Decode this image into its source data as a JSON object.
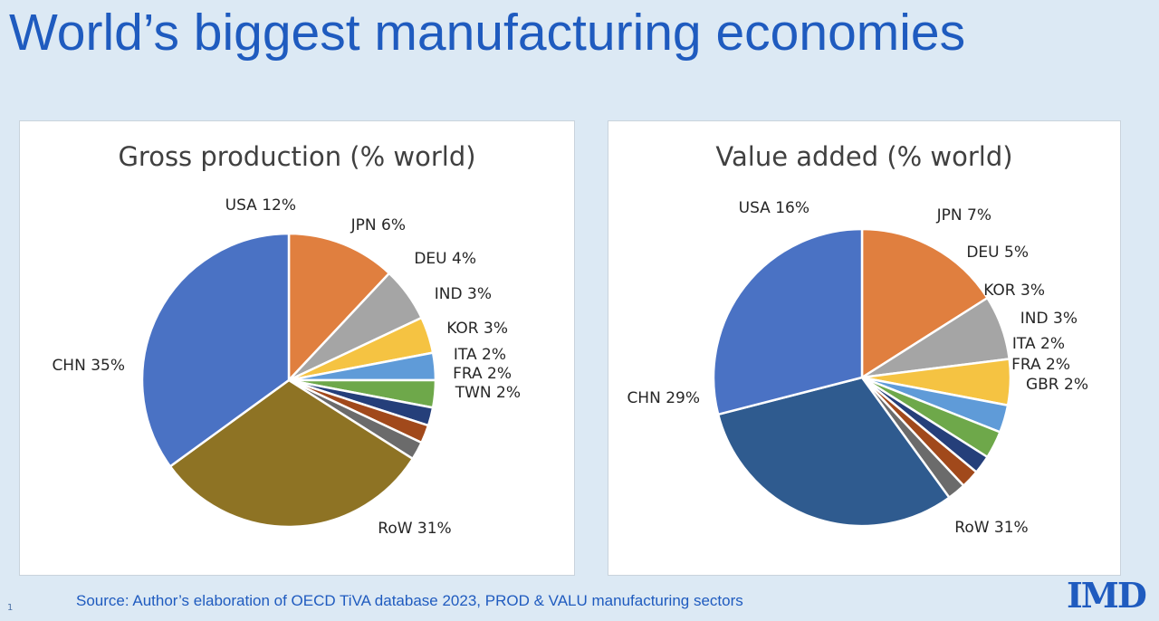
{
  "title": "World’s biggest manufacturing economies",
  "footer": {
    "slide_number": "1",
    "source": "Source: Author’s elaboration of OECD    TiVA database 2023, PROD & VALU manufacturing sectors",
    "logo": "IMD"
  },
  "colors": {
    "title": "#1f5bbf",
    "background": "#dce9f4"
  },
  "chart_data": [
    {
      "type": "pie",
      "title": "Gross production  (% world)",
      "start_angle_deg": 0,
      "direction": "clockwise",
      "slices": [
        {
          "label": "USA 12%",
          "name": "USA",
          "value": 12,
          "color": "#e07f3f"
        },
        {
          "label": "JPN 6%",
          "name": "JPN",
          "value": 6,
          "color": "#a5a5a5"
        },
        {
          "label": "DEU 4%",
          "name": "DEU",
          "value": 4,
          "color": "#f5c342"
        },
        {
          "label": "IND 3%",
          "name": "IND",
          "value": 3,
          "color": "#5f9bd8"
        },
        {
          "label": "KOR 3%",
          "name": "KOR",
          "value": 3,
          "color": "#6ea84a"
        },
        {
          "label": "ITA 2%",
          "name": "ITA",
          "value": 2,
          "color": "#253f7a"
        },
        {
          "label": "FRA 2%",
          "name": "FRA",
          "value": 2,
          "color": "#a1491b"
        },
        {
          "label": "TWN 2%",
          "name": "TWN",
          "value": 2,
          "color": "#6b6b6b"
        },
        {
          "label": "RoW 31%",
          "name": "RoW",
          "value": 31,
          "color": "#8e7324"
        },
        {
          "label": "CHN 35%",
          "name": "CHN",
          "value": 35,
          "color": "#4a72c4"
        }
      ]
    },
    {
      "type": "pie",
      "title": "Value added (% world)",
      "start_angle_deg": 0,
      "direction": "clockwise",
      "slices": [
        {
          "label": "USA 16%",
          "name": "USA",
          "value": 16,
          "color": "#e07f3f"
        },
        {
          "label": "JPN 7%",
          "name": "JPN",
          "value": 7,
          "color": "#a5a5a5"
        },
        {
          "label": "DEU 5%",
          "name": "DEU",
          "value": 5,
          "color": "#f5c342"
        },
        {
          "label": "KOR 3%",
          "name": "KOR",
          "value": 3,
          "color": "#5f9bd8"
        },
        {
          "label": "IND 3%",
          "name": "IND",
          "value": 3,
          "color": "#6ea84a"
        },
        {
          "label": "ITA 2%",
          "name": "ITA",
          "value": 2,
          "color": "#253f7a"
        },
        {
          "label": "FRA 2%",
          "name": "FRA",
          "value": 2,
          "color": "#a1491b"
        },
        {
          "label": "GBR 2%",
          "name": "GBR",
          "value": 2,
          "color": "#6b6b6b"
        },
        {
          "label": "RoW 31%",
          "name": "RoW",
          "value": 31,
          "color": "#2f5b8f"
        },
        {
          "label": "CHN 29%",
          "name": "CHN",
          "value": 29,
          "color": "#4a72c4"
        }
      ]
    }
  ]
}
